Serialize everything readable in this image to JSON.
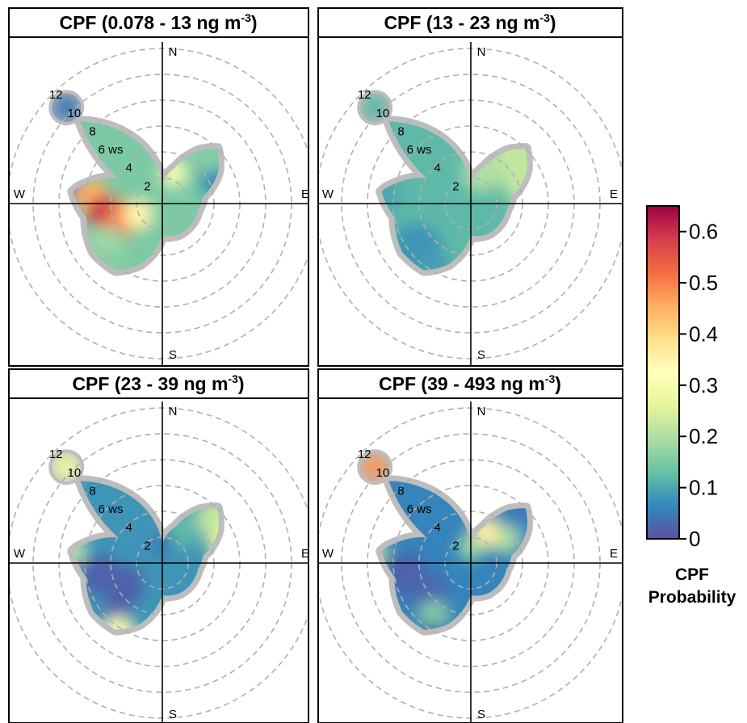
{
  "chart_data": {
    "type": "heatmap",
    "description_kind": "polar conditional probability function plots",
    "panel_titles": [
      {
        "main": "CPF (0.078 - 13 ng m",
        "sup": "-3",
        "end": ")"
      },
      {
        "main": "CPF (13 - 23 ng m",
        "sup": "-3",
        "end": ")"
      },
      {
        "main": "CPF (23 - 39 ng m",
        "sup": "-3",
        "end": ")"
      },
      {
        "main": "CPF (39 - 493 ng m",
        "sup": "-3",
        "end": ")"
      }
    ],
    "ring_labels": [
      "2",
      "4",
      "6 ws",
      "8",
      "10",
      "12"
    ],
    "ring_values": [
      2,
      4,
      6,
      8,
      10,
      12
    ],
    "directions": {
      "north": "N",
      "east": "E",
      "south": "S",
      "west": "W"
    },
    "colorbar": {
      "ticks": [
        "0",
        "0.1",
        "0.2",
        "0.3",
        "0.4",
        "0.5",
        "0.6"
      ],
      "tick_values": [
        0,
        0.1,
        0.2,
        0.3,
        0.4,
        0.5,
        0.6
      ],
      "range": [
        0,
        0.65
      ],
      "title_line1": "CPF",
      "title_line2": "Probability",
      "colors": [
        "#5e4fa2",
        "#3288bd",
        "#66c2a5",
        "#abdda4",
        "#e6f598",
        "#ffffbf",
        "#fee08b",
        "#fdae61",
        "#f46d43",
        "#d53e4f",
        "#9e0142"
      ]
    },
    "panels": [
      {
        "footprint": [
          [
            315,
            9
          ],
          [
            300,
            4
          ],
          [
            278,
            7
          ],
          [
            260,
            6
          ],
          [
            235,
            6.5
          ],
          [
            215,
            6.3
          ],
          [
            200,
            5
          ],
          [
            180,
            2.5
          ],
          [
            150,
            2.7
          ],
          [
            100,
            2.8
          ],
          [
            80,
            3.2
          ],
          [
            60,
            5
          ],
          [
            45,
            6
          ],
          [
            35,
            5
          ],
          [
            20,
            3
          ],
          [
            0,
            1.5
          ]
        ],
        "blobs": [
          [
            315,
            10.5,
            1.1,
            0.05
          ],
          [
            278,
            7.6,
            1.3,
            0.04
          ],
          [
            275,
            5.5,
            1.4,
            0.45
          ],
          [
            260,
            4.5,
            1.4,
            0.6
          ],
          [
            250,
            3.2,
            1.4,
            0.5
          ],
          [
            245,
            2,
            1.2,
            0.35
          ],
          [
            235,
            5.5,
            1.5,
            0.18
          ],
          [
            220,
            6.3,
            1.2,
            0.16
          ],
          [
            20,
            2.5,
            1.1,
            0.3
          ],
          [
            60,
            4.2,
            1.4,
            0.12
          ],
          [
            45,
            5,
            1.1,
            0.16
          ],
          [
            70,
            4.5,
            1.1,
            0.06
          ]
        ],
        "base": 0.15
      },
      {
        "footprint": [
          [
            315,
            9
          ],
          [
            300,
            4
          ],
          [
            278,
            7
          ],
          [
            260,
            6
          ],
          [
            235,
            6.5
          ],
          [
            215,
            6.3
          ],
          [
            200,
            5
          ],
          [
            180,
            2.5
          ],
          [
            150,
            2.7
          ],
          [
            100,
            2.8
          ],
          [
            80,
            3.2
          ],
          [
            60,
            5
          ],
          [
            45,
            6
          ],
          [
            35,
            5
          ],
          [
            20,
            3
          ],
          [
            0,
            1.5
          ]
        ],
        "blobs": [
          [
            315,
            10.5,
            1.1,
            0.12
          ],
          [
            275,
            7,
            1.6,
            0.1
          ],
          [
            230,
            5.5,
            2,
            0.08
          ],
          [
            210,
            6,
            1.5,
            0.09
          ],
          [
            45,
            5,
            2,
            0.22
          ],
          [
            70,
            4.3,
            1.5,
            0.22
          ],
          [
            20,
            2.5,
            1.5,
            0.2
          ]
        ],
        "base": 0.12
      },
      {
        "footprint": [
          [
            315,
            9
          ],
          [
            300,
            4
          ],
          [
            278,
            7
          ],
          [
            260,
            6
          ],
          [
            235,
            6.5
          ],
          [
            215,
            6.3
          ],
          [
            200,
            5
          ],
          [
            180,
            2.5
          ],
          [
            150,
            2.7
          ],
          [
            100,
            2.8
          ],
          [
            80,
            3.2
          ],
          [
            60,
            5
          ],
          [
            45,
            6
          ],
          [
            35,
            5
          ],
          [
            20,
            3
          ],
          [
            0,
            1.5
          ]
        ],
        "blobs": [
          [
            315,
            10.5,
            1.1,
            0.28
          ],
          [
            278,
            7.2,
            1.3,
            0.2
          ],
          [
            260,
            5,
            1.5,
            0.02
          ],
          [
            240,
            3.5,
            1.6,
            0.02
          ],
          [
            220,
            5.5,
            1.2,
            0.02
          ],
          [
            212,
            6.5,
            1.4,
            0.3
          ],
          [
            50,
            5.5,
            1.6,
            0.22
          ],
          [
            72,
            5,
            1.3,
            0.26
          ],
          [
            30,
            3,
            1.5,
            0.12
          ],
          [
            0,
            1.5,
            1,
            0.05
          ]
        ],
        "base": 0.08
      },
      {
        "footprint": [
          [
            315,
            9
          ],
          [
            300,
            4
          ],
          [
            278,
            7
          ],
          [
            260,
            6
          ],
          [
            235,
            6.5
          ],
          [
            215,
            6.3
          ],
          [
            200,
            5
          ],
          [
            180,
            2.5
          ],
          [
            150,
            2.7
          ],
          [
            100,
            2.8
          ],
          [
            80,
            3.2
          ],
          [
            60,
            5
          ],
          [
            45,
            6
          ],
          [
            35,
            5
          ],
          [
            20,
            3
          ],
          [
            0,
            1.5
          ]
        ],
        "blobs": [
          [
            315,
            10.5,
            1,
            0.48
          ],
          [
            277,
            7.5,
            1,
            0.22
          ],
          [
            260,
            5,
            1.6,
            0.02
          ],
          [
            235,
            4,
            1.6,
            0.03
          ],
          [
            215,
            5,
            1.2,
            0.16
          ],
          [
            208,
            6.5,
            1.2,
            0.03
          ],
          [
            28,
            2.6,
            1.3,
            0.36
          ],
          [
            60,
            3.5,
            1.1,
            0.2
          ],
          [
            45,
            5.5,
            1.3,
            0.05
          ],
          [
            75,
            4.8,
            1.3,
            0.08
          ],
          [
            0,
            1.2,
            1,
            0.18
          ]
        ],
        "base": 0.06
      }
    ]
  }
}
